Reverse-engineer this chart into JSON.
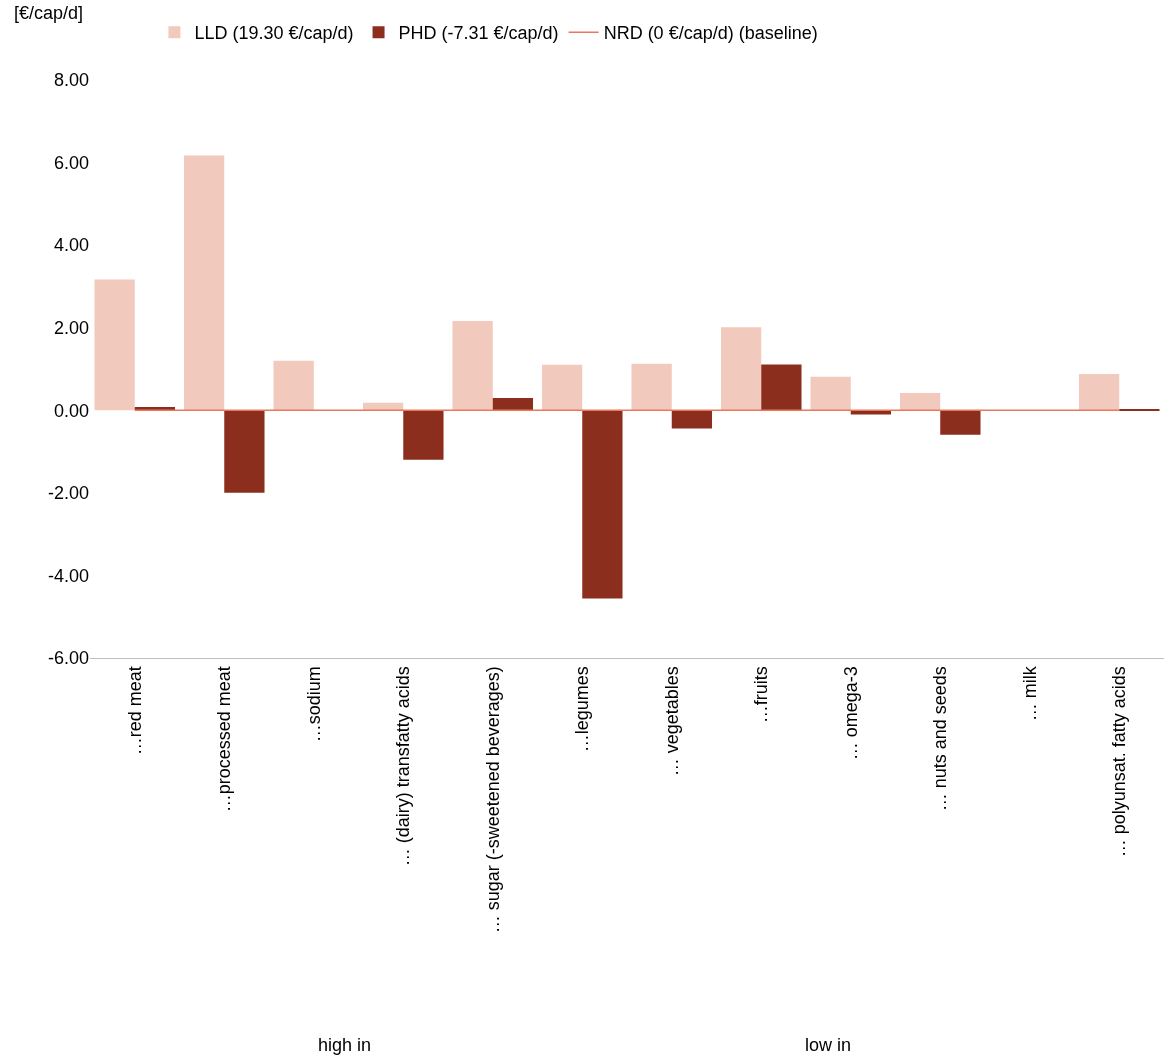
{
  "chart_data": {
    "type": "bar",
    "ylabel": "[€/cap/d]",
    "categories": [
      "…red meat",
      "…processed meat",
      "…sodium",
      "… (dairy) transfatty acids",
      "… sugar (-sweetened beverages)",
      "…legumes",
      "… vegetables",
      "…fruits",
      "… omega-3",
      "… nuts and seeds",
      "… milk",
      "… polyunsat. fatty acids"
    ],
    "series": [
      {
        "name": "LLD (19.30 €/cap/d)",
        "color": "#f2c9bd",
        "values": [
          3.17,
          6.17,
          1.2,
          0.18,
          2.16,
          1.1,
          1.13,
          2.01,
          0.81,
          0.42,
          0.0,
          0.88
        ]
      },
      {
        "name": "PHD (-7.31 €/cap/d)",
        "color": "#8b2e1e",
        "values": [
          0.08,
          -2.0,
          0.0,
          -1.2,
          0.3,
          -4.56,
          -0.44,
          1.11,
          -0.1,
          -0.59,
          0.0,
          0.02
        ]
      },
      {
        "name": "NRD (0 €/cap/d) (baseline)",
        "type": "line",
        "color": "#e8785e",
        "values": [
          0,
          0,
          0,
          0,
          0,
          0,
          0,
          0,
          0,
          0,
          0,
          0
        ]
      }
    ],
    "annotations": [
      "high in",
      "low in"
    ],
    "ylim": [
      -6,
      8
    ],
    "yticks": [
      {
        "value": -6,
        "label": "-6.00"
      },
      {
        "value": -4,
        "label": "-4.00"
      },
      {
        "value": -2,
        "label": "-2.00"
      },
      {
        "value": 0,
        "label": "0.00"
      },
      {
        "value": 2,
        "label": "2.00"
      },
      {
        "value": 4,
        "label": "4.00"
      },
      {
        "value": 6,
        "label": "6.00"
      },
      {
        "value": 8,
        "label": "8.00"
      }
    ],
    "grid": false,
    "legend": "top",
    "marker": "none"
  }
}
